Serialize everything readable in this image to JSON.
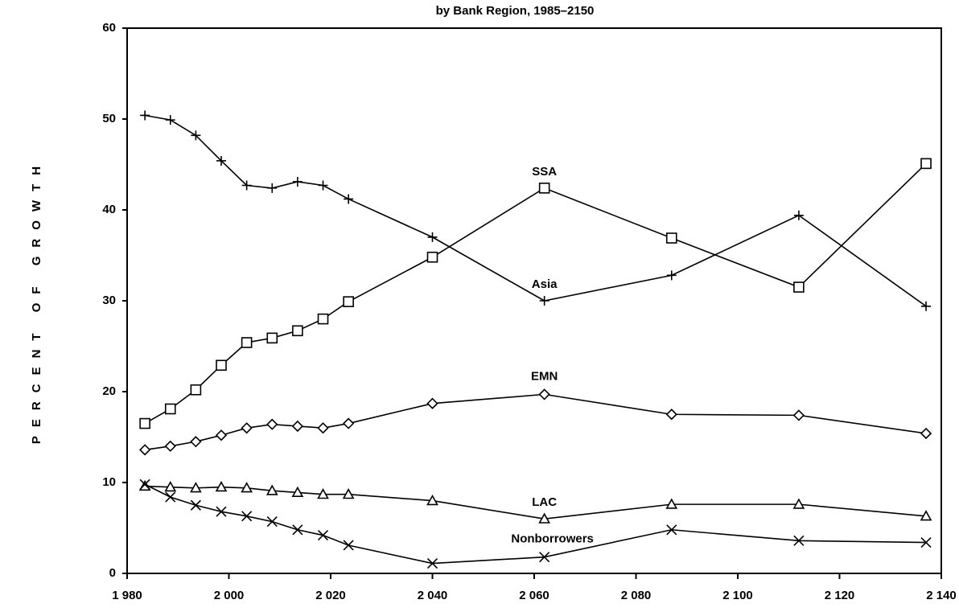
{
  "chart_data": {
    "type": "line",
    "title": "by Bank Region, 1985–2150",
    "y_label": "PERCENT OF GROWTH",
    "x": [
      1983.5,
      1988.5,
      1993.5,
      1998.5,
      2003.5,
      2008.5,
      2013.5,
      2018.5,
      2023.5,
      2040,
      2062,
      2087,
      2112,
      2137
    ],
    "xlim": [
      1980,
      2140
    ],
    "xticks": [
      {
        "value": 1980,
        "label": "1 980"
      },
      {
        "value": 2000,
        "label": "2 000"
      },
      {
        "value": 2020,
        "label": "2 020"
      },
      {
        "value": 2040,
        "label": "2 040"
      },
      {
        "value": 2060,
        "label": "2 060"
      },
      {
        "value": 2080,
        "label": "2 080"
      },
      {
        "value": 2100,
        "label": "2 100"
      },
      {
        "value": 2120,
        "label": "2 120"
      },
      {
        "value": 2140,
        "label": "2 140"
      }
    ],
    "ylim": [
      0,
      60
    ],
    "yticks": [
      0,
      10,
      20,
      30,
      40,
      50,
      60
    ],
    "grid": false,
    "series": [
      {
        "name": "Asia",
        "color": "#000000",
        "marker": "plus",
        "values": [
          50.4,
          49.9,
          48.2,
          45.4,
          42.7,
          42.4,
          43.1,
          42.7,
          41.2,
          37.0,
          30.0,
          32.8,
          39.4,
          29.4
        ]
      },
      {
        "name": "SSA",
        "color": "#000000",
        "marker": "square",
        "values": [
          16.5,
          18.1,
          20.2,
          22.9,
          25.4,
          25.9,
          26.7,
          28.0,
          29.9,
          34.8,
          42.4,
          36.9,
          31.5,
          45.1
        ]
      },
      {
        "name": "EMN",
        "color": "#000000",
        "marker": "diamond",
        "values": [
          13.6,
          14.0,
          14.5,
          15.2,
          16.0,
          16.4,
          16.2,
          16.0,
          16.5,
          18.7,
          19.7,
          17.5,
          17.4,
          15.4
        ]
      },
      {
        "name": "LAC",
        "color": "#000000",
        "marker": "triangle",
        "values": [
          9.6,
          9.5,
          9.4,
          9.5,
          9.4,
          9.1,
          8.9,
          8.7,
          8.7,
          8.0,
          6.0,
          7.6,
          7.6,
          6.3
        ]
      },
      {
        "name": "Nonborrowers",
        "color": "#000000",
        "marker": "cross",
        "values": [
          9.8,
          8.4,
          7.5,
          6.8,
          6.3,
          5.7,
          4.8,
          4.2,
          3.1,
          1.1,
          1.8,
          4.8,
          3.6,
          3.4
        ]
      }
    ]
  }
}
